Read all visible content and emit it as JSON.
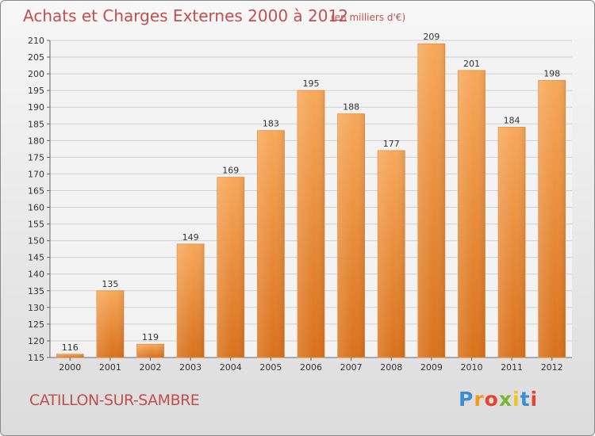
{
  "chart_data": {
    "type": "bar",
    "title": "Achats et Charges Externes 2000 à 2012",
    "subtitle": "(en milliers d'€)",
    "categories": [
      "2000",
      "2001",
      "2002",
      "2003",
      "2004",
      "2005",
      "2006",
      "2007",
      "2008",
      "2009",
      "2010",
      "2011",
      "2012"
    ],
    "values": [
      116,
      135,
      119,
      149,
      169,
      183,
      195,
      188,
      177,
      209,
      201,
      184,
      198
    ],
    "ylim": [
      115,
      210
    ],
    "yticks": [
      115,
      120,
      125,
      130,
      135,
      140,
      145,
      150,
      155,
      160,
      165,
      170,
      175,
      180,
      185,
      190,
      195,
      200,
      205,
      210
    ],
    "grid": true,
    "bar_color": "#f0923a",
    "title_color": "#c0504d"
  },
  "commune": "CATILLON-SUR-SAMBRE",
  "logo": {
    "letters": [
      {
        "ch": "P",
        "color": "#3b8ed6"
      },
      {
        "ch": "r",
        "color": "#f29a1f"
      },
      {
        "ch": "o",
        "color": "#e8432c"
      },
      {
        "ch": "x",
        "color": "#7ab63a"
      },
      {
        "ch": "i",
        "color": "#f2c21f"
      },
      {
        "ch": "t",
        "color": "#3b8ed6"
      },
      {
        "ch": "i",
        "color": "#e8432c"
      }
    ]
  }
}
